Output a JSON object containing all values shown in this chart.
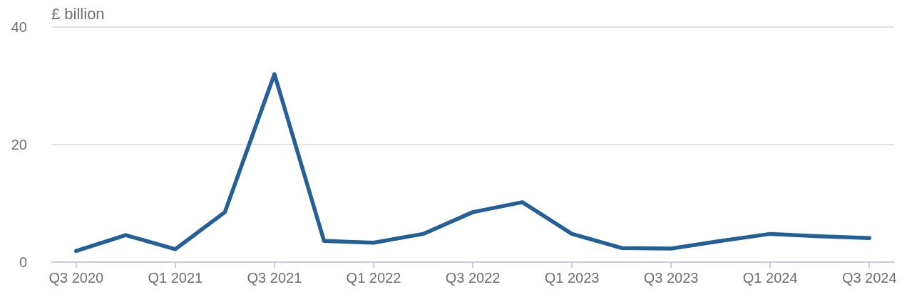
{
  "chart_data": {
    "type": "line",
    "ylabel": "£ billion",
    "categories": [
      "Q3 2020",
      null,
      "Q1 2021",
      null,
      "Q3 2021",
      null,
      "Q1 2022",
      null,
      "Q3 2022",
      null,
      "Q1 2023",
      null,
      "Q3 2023",
      null,
      "Q1 2024",
      null,
      "Q3 2024"
    ],
    "series": [
      {
        "color": "#245f96",
        "values": [
          1.9,
          4.6,
          2.2,
          8.5,
          32.0,
          3.6,
          3.3,
          4.8,
          8.5,
          10.2,
          4.8,
          2.4,
          2.3,
          3.6,
          4.8,
          4.4,
          4.1
        ]
      }
    ],
    "ylim": [
      0,
      40
    ],
    "yticks": [
      0,
      20,
      40
    ],
    "grid": "y",
    "marker": "none",
    "line_style": "solid"
  }
}
